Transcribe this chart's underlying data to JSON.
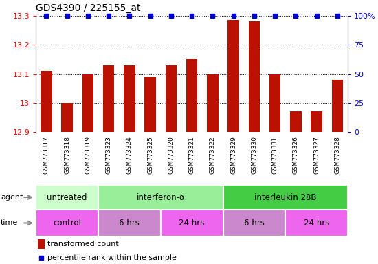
{
  "title": "GDS4390 / 225155_at",
  "samples": [
    "GSM773317",
    "GSM773318",
    "GSM773319",
    "GSM773323",
    "GSM773324",
    "GSM773325",
    "GSM773320",
    "GSM773321",
    "GSM773322",
    "GSM773329",
    "GSM773330",
    "GSM773331",
    "GSM773326",
    "GSM773327",
    "GSM773328"
  ],
  "red_values": [
    13.11,
    13.0,
    13.1,
    13.13,
    13.13,
    13.09,
    13.13,
    13.15,
    13.1,
    13.285,
    13.28,
    13.1,
    12.97,
    12.97,
    13.08
  ],
  "blue_values": [
    100,
    100,
    100,
    100,
    100,
    100,
    100,
    100,
    100,
    100,
    100,
    100,
    100,
    100,
    100
  ],
  "ylim_left": [
    12.9,
    13.3
  ],
  "ylim_right": [
    0,
    100
  ],
  "yticks_left": [
    12.9,
    13.0,
    13.1,
    13.2,
    13.3
  ],
  "yticks_left_labels": [
    "12.9",
    "13",
    "13.1",
    "13.2",
    "13.3"
  ],
  "yticks_right": [
    0,
    25,
    50,
    75,
    100
  ],
  "yticks_right_labels": [
    "0",
    "25",
    "50",
    "75",
    "100%"
  ],
  "agent_groups": [
    {
      "label": "untreated",
      "start": 0,
      "end": 3,
      "color": "#ccffcc"
    },
    {
      "label": "interferon-α",
      "start": 3,
      "end": 9,
      "color": "#99ee99"
    },
    {
      "label": "interleukin 28B",
      "start": 9,
      "end": 15,
      "color": "#44cc44"
    }
  ],
  "time_groups": [
    {
      "label": "control",
      "start": 0,
      "end": 3,
      "color": "#ee66ee"
    },
    {
      "label": "6 hrs",
      "start": 3,
      "end": 6,
      "color": "#cc88cc"
    },
    {
      "label": "24 hrs",
      "start": 6,
      "end": 9,
      "color": "#ee66ee"
    },
    {
      "label": "6 hrs",
      "start": 9,
      "end": 12,
      "color": "#cc88cc"
    },
    {
      "label": "24 hrs",
      "start": 12,
      "end": 15,
      "color": "#ee66ee"
    }
  ],
  "bar_color": "#bb1100",
  "dot_color": "#0000cc",
  "plot_bg": "#ffffff",
  "tick_area_bg": "#cccccc",
  "agent_colors": [
    "#ccffcc",
    "#99ee99",
    "#44cc44"
  ],
  "time_colors": [
    "#ee66ee",
    "#cc88cc",
    "#ee66ee",
    "#cc88cc",
    "#ee66ee"
  ]
}
